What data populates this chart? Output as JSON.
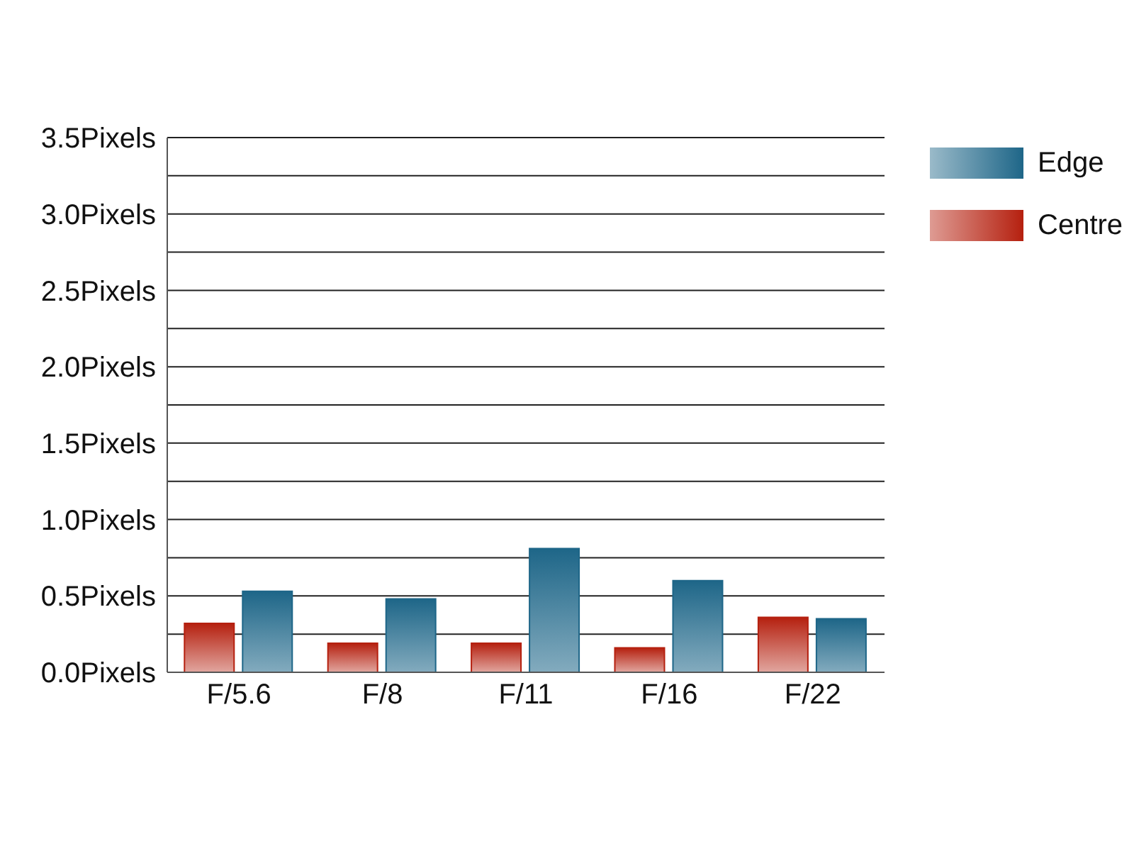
{
  "chart_data": {
    "type": "bar",
    "categories": [
      "F/5.6",
      "F/8",
      "F/11",
      "F/16",
      "F/22"
    ],
    "series": [
      {
        "name": "Centre",
        "color": "#b5200f",
        "values": [
          0.32,
          0.19,
          0.19,
          0.16,
          0.36
        ]
      },
      {
        "name": "Edge",
        "color": "#1e6688",
        "values": [
          0.53,
          0.48,
          0.81,
          0.6,
          0.35
        ]
      }
    ],
    "ylim": [
      0,
      3.5
    ],
    "yticks": [
      {
        "value": 0,
        "label": "0.0Pixels"
      },
      {
        "value": 0.25,
        "label": null
      },
      {
        "value": 0.5,
        "label": "0.5Pixels"
      },
      {
        "value": 0.75,
        "label": null
      },
      {
        "value": 1,
        "label": "1.0Pixels"
      },
      {
        "value": 1.25,
        "label": null
      },
      {
        "value": 1.5,
        "label": "1.5Pixels"
      },
      {
        "value": 1.75,
        "label": null
      },
      {
        "value": 2,
        "label": "2.0Pixels"
      },
      {
        "value": 2.25,
        "label": null
      },
      {
        "value": 2.5,
        "label": "2.5Pixels"
      },
      {
        "value": 2.75,
        "label": null
      },
      {
        "value": 3,
        "label": "3.0Pixels"
      },
      {
        "value": 3.25,
        "label": null
      },
      {
        "value": 3.5,
        "label": "3.5Pixels"
      }
    ],
    "grid": "y",
    "legend": "right"
  }
}
